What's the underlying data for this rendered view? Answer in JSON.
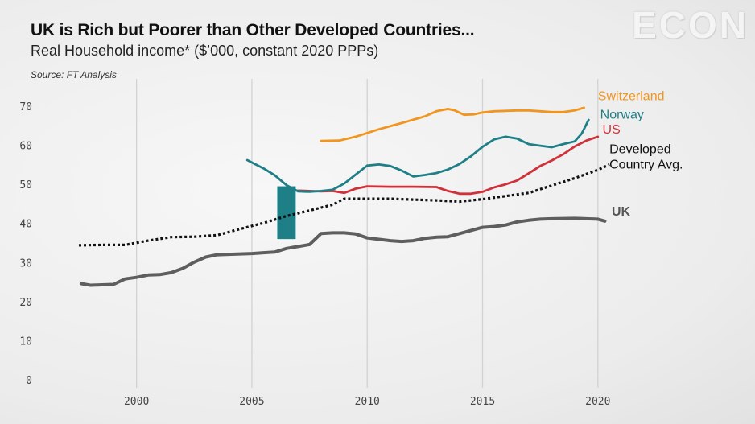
{
  "header": {
    "title": "UK is Rich but Poorer than Other Developed Countries...",
    "subtitle": "Real Household income* ($’000, constant 2020 PPPs)",
    "source": "Source: FT Analysis",
    "logo": "ECON"
  },
  "chart_data": {
    "type": "line",
    "title": "UK is Rich but Poorer than Other Developed Countries...",
    "subtitle": "Real Household income* ($’000, constant 2020 PPPs)",
    "xlim": [
      1997.5,
      2020.6
    ],
    "ylim": [
      0,
      70
    ],
    "xticks": [
      2000,
      2005,
      2010,
      2015,
      2020
    ],
    "yticks": [
      0,
      10,
      20,
      30,
      40,
      50,
      60,
      70
    ],
    "grid": "vertical",
    "highlight": {
      "x": [
        2006.1,
        2006.9
      ],
      "y": [
        36,
        49.5
      ],
      "color": "#1f7f87"
    },
    "series": [
      {
        "name": "Switzerland",
        "color": "#f0961e",
        "style": "solid",
        "x": [
          2008.0,
          2008.8,
          2009.5,
          2010.5,
          2011.5,
          2012.5,
          2013.0,
          2013.5,
          2013.8,
          2014.2,
          2014.6,
          2015.0,
          2015.5,
          2016.0,
          2016.5,
          2017.0,
          2017.5,
          2018.0,
          2018.5,
          2019.0,
          2019.4
        ],
        "values": [
          61.1,
          61.2,
          62.2,
          64.1,
          65.7,
          67.4,
          68.7,
          69.3,
          68.9,
          67.8,
          67.9,
          68.4,
          68.7,
          68.8,
          68.9,
          68.9,
          68.7,
          68.5,
          68.5,
          68.9,
          69.6
        ]
      },
      {
        "name": "Norway",
        "color": "#1f7f87",
        "style": "solid",
        "x": [
          2004.8,
          2005.5,
          2006.0,
          2006.5,
          2007.0,
          2007.5,
          2008.0,
          2008.5,
          2009.0,
          2009.5,
          2010.0,
          2010.5,
          2011.0,
          2011.5,
          2012.0,
          2012.5,
          2013.0,
          2013.5,
          2014.0,
          2014.5,
          2015.0,
          2015.5,
          2016.0,
          2016.5,
          2017.0,
          2017.5,
          2018.0,
          2018.5,
          2019.0,
          2019.3,
          2019.6
        ],
        "values": [
          56.2,
          54.1,
          52.3,
          49.8,
          48.2,
          48.1,
          48.3,
          48.6,
          50.2,
          52.5,
          54.8,
          55.1,
          54.7,
          53.5,
          52.0,
          52.4,
          52.9,
          53.8,
          55.2,
          57.2,
          59.6,
          61.5,
          62.2,
          61.7,
          60.3,
          59.9,
          59.5,
          60.3,
          61.0,
          63.0,
          66.5
        ]
      },
      {
        "name": "US",
        "color": "#d0303a",
        "style": "solid",
        "x": [
          2007.0,
          2008.0,
          2008.5,
          2009.0,
          2009.5,
          2010.0,
          2011.0,
          2012.0,
          2013.0,
          2013.5,
          2014.0,
          2014.5,
          2015.0,
          2015.5,
          2016.0,
          2016.5,
          2017.0,
          2017.5,
          2018.0,
          2018.5,
          2019.0,
          2019.5,
          2020.0
        ],
        "values": [
          48.4,
          48.2,
          48.3,
          47.8,
          48.9,
          49.5,
          49.4,
          49.4,
          49.3,
          48.3,
          47.6,
          47.6,
          48.1,
          49.2,
          50.0,
          51.0,
          52.8,
          54.7,
          56.1,
          57.7,
          59.7,
          61.2,
          62.2
        ]
      },
      {
        "name": "Developed Country Avg.",
        "color": "#111111",
        "style": "dotted",
        "x": [
          1997.5,
          1998.5,
          1999.5,
          2000.5,
          2001.5,
          2002.5,
          2003.5,
          2004.5,
          2005.5,
          2006.5,
          2007.5,
          2008.5,
          2009.0,
          2010.0,
          2011.0,
          2012.0,
          2013.0,
          2014.0,
          2015.0,
          2016.0,
          2017.0,
          2018.0,
          2019.0,
          2020.0,
          2020.5
        ],
        "values": [
          34.4,
          34.5,
          34.5,
          35.6,
          36.5,
          36.6,
          37.0,
          38.6,
          40.1,
          41.9,
          43.3,
          44.8,
          46.3,
          46.3,
          46.3,
          46.1,
          45.9,
          45.6,
          46.2,
          47.0,
          47.8,
          49.7,
          51.6,
          53.7,
          55.1
        ]
      },
      {
        "name": "UK",
        "color": "#5e5e5e",
        "style": "solid",
        "x": [
          1997.6,
          1998.0,
          1998.5,
          1999.0,
          1999.5,
          2000.0,
          2000.5,
          2001.0,
          2001.5,
          2002.0,
          2002.5,
          2003.0,
          2003.5,
          2004.0,
          2004.5,
          2005.0,
          2005.5,
          2006.0,
          2006.5,
          2007.0,
          2007.5,
          2008.0,
          2008.5,
          2009.0,
          2009.5,
          2010.0,
          2011.0,
          2011.5,
          2012.0,
          2012.5,
          2013.0,
          2013.5,
          2014.0,
          2015.0,
          2015.5,
          2016.0,
          2016.5,
          2017.0,
          2017.5,
          2018.0,
          2019.0,
          2020.0,
          2020.3
        ],
        "values": [
          24.6,
          24.2,
          24.3,
          24.4,
          25.8,
          26.2,
          26.8,
          26.9,
          27.4,
          28.5,
          30.1,
          31.4,
          32.0,
          32.1,
          32.2,
          32.3,
          32.5,
          32.7,
          33.6,
          34.1,
          34.6,
          37.4,
          37.6,
          37.6,
          37.3,
          36.3,
          35.6,
          35.4,
          35.6,
          36.2,
          36.5,
          36.6,
          37.4,
          39.0,
          39.2,
          39.6,
          40.4,
          40.8,
          41.1,
          41.2,
          41.3,
          41.1,
          40.6
        ]
      }
    ],
    "labels": [
      {
        "series": "Switzerland",
        "lines": [
          "Switzerland"
        ],
        "color": "#f0961e",
        "bold": false,
        "x": 2020.0,
        "y": 71.5
      },
      {
        "series": "Norway",
        "lines": [
          "Norway"
        ],
        "color": "#1f7f87",
        "bold": false,
        "x": 2020.1,
        "y": 66.8
      },
      {
        "series": "US",
        "lines": [
          "US"
        ],
        "color": "#d0303a",
        "bold": false,
        "x": 2020.2,
        "y": 63.0
      },
      {
        "series": "Developed Country Avg.",
        "lines": [
          "Developed",
          "Country Avg."
        ],
        "color": "#111111",
        "bold": false,
        "x": 2020.5,
        "y": 58.0
      },
      {
        "series": "UK",
        "lines": [
          "UK"
        ],
        "color": "#555555",
        "bold": true,
        "x": 2020.6,
        "y": 42.0
      }
    ]
  }
}
